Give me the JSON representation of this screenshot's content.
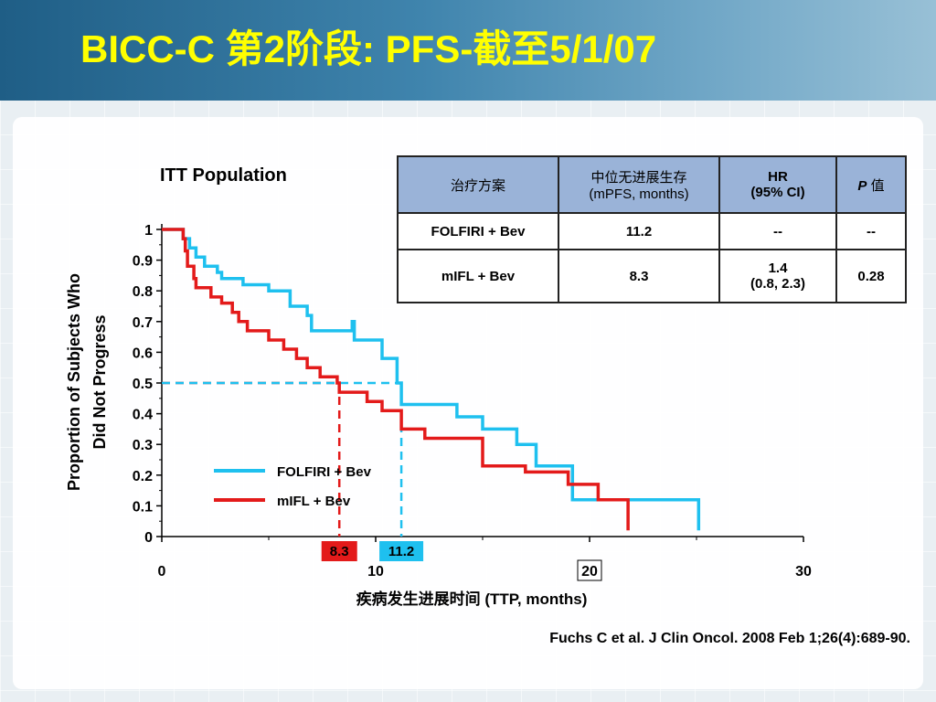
{
  "slide": {
    "title": "BICC-C  第2阶段: PFS-截至5/1/07",
    "citation": "Fuchs C et al. J Clin Oncol. 2008 Feb 1;26(4):689-90."
  },
  "table": {
    "headers": {
      "treatment": "治疗方案",
      "mpfs_line1": "中位无进展生存",
      "mpfs_line2": "(mPFS, months)",
      "hr_line1": "HR",
      "hr_line2": "(95% CI)",
      "p_italic": "P",
      "p_rest": " 值"
    },
    "rows": [
      {
        "treatment": "FOLFIRI + Bev",
        "mpfs": "11.2",
        "hr_line1": "--",
        "hr_line2": "",
        "p": "--"
      },
      {
        "treatment": "mIFL + Bev",
        "mpfs": "8.3",
        "hr_line1": "1.4",
        "hr_line2": "(0.8, 2.3)",
        "p": "0.28"
      }
    ]
  },
  "chart_data": {
    "type": "line",
    "step": true,
    "title": "ITT Population",
    "xlabel": "疾病发生进展时间 (TTP, months)",
    "ylabel_line1": "Proportion of Subjects Who",
    "ylabel_line2": "Did Not Progress",
    "xlim": [
      0,
      30
    ],
    "ylim": [
      0,
      1
    ],
    "x_ticks": [
      {
        "value": 0,
        "label": "0"
      },
      {
        "value": 10,
        "label": "10"
      },
      {
        "value": 20,
        "label": "20"
      },
      {
        "value": 30,
        "label": "30"
      }
    ],
    "y_ticks": [
      {
        "value": 0,
        "label": "0"
      },
      {
        "value": 0.1,
        "label": "0.1"
      },
      {
        "value": 0.2,
        "label": "0.2"
      },
      {
        "value": 0.3,
        "label": "0.3"
      },
      {
        "value": 0.4,
        "label": "0.4"
      },
      {
        "value": 0.5,
        "label": "0.5"
      },
      {
        "value": 0.6,
        "label": "0.6"
      },
      {
        "value": 0.7,
        "label": "0.7"
      },
      {
        "value": 0.8,
        "label": "0.8"
      },
      {
        "value": 0.9,
        "label": "0.9"
      },
      {
        "value": 1,
        "label": "1"
      }
    ],
    "grid": false,
    "legend_position": "lower-left",
    "series": [
      {
        "name": "FOLFIRI + Bev",
        "color": "#1ec0ef",
        "points": [
          [
            0,
            1.0
          ],
          [
            1.0,
            1.0
          ],
          [
            1.0,
            0.97
          ],
          [
            1.3,
            0.97
          ],
          [
            1.3,
            0.94
          ],
          [
            1.6,
            0.94
          ],
          [
            1.6,
            0.91
          ],
          [
            2.0,
            0.91
          ],
          [
            2.0,
            0.88
          ],
          [
            2.6,
            0.88
          ],
          [
            2.6,
            0.86
          ],
          [
            2.8,
            0.86
          ],
          [
            2.8,
            0.84
          ],
          [
            3.8,
            0.84
          ],
          [
            3.8,
            0.82
          ],
          [
            5.0,
            0.82
          ],
          [
            5.0,
            0.8
          ],
          [
            6.0,
            0.8
          ],
          [
            6.0,
            0.75
          ],
          [
            6.8,
            0.75
          ],
          [
            6.8,
            0.72
          ],
          [
            7.0,
            0.72
          ],
          [
            7.0,
            0.67
          ],
          [
            8.9,
            0.67
          ],
          [
            8.9,
            0.7
          ],
          [
            9.0,
            0.7
          ],
          [
            9.0,
            0.64
          ],
          [
            10.3,
            0.64
          ],
          [
            10.3,
            0.58
          ],
          [
            11.0,
            0.58
          ],
          [
            11.0,
            0.5
          ],
          [
            11.2,
            0.5
          ],
          [
            11.2,
            0.43
          ],
          [
            13.8,
            0.43
          ],
          [
            13.8,
            0.39
          ],
          [
            15.0,
            0.39
          ],
          [
            15.0,
            0.35
          ],
          [
            16.6,
            0.35
          ],
          [
            16.6,
            0.3
          ],
          [
            17.5,
            0.3
          ],
          [
            17.5,
            0.23
          ],
          [
            19.2,
            0.23
          ],
          [
            19.2,
            0.12
          ],
          [
            25.1,
            0.12
          ],
          [
            25.1,
            0.02
          ]
        ]
      },
      {
        "name": "mIFL + Bev",
        "color": "#e31a1a",
        "points": [
          [
            0,
            1.0
          ],
          [
            1.0,
            1.0
          ],
          [
            1.0,
            0.97
          ],
          [
            1.1,
            0.97
          ],
          [
            1.1,
            0.93
          ],
          [
            1.2,
            0.93
          ],
          [
            1.2,
            0.88
          ],
          [
            1.5,
            0.88
          ],
          [
            1.5,
            0.84
          ],
          [
            1.6,
            0.84
          ],
          [
            1.6,
            0.81
          ],
          [
            2.3,
            0.81
          ],
          [
            2.3,
            0.78
          ],
          [
            2.8,
            0.78
          ],
          [
            2.8,
            0.76
          ],
          [
            3.3,
            0.76
          ],
          [
            3.3,
            0.73
          ],
          [
            3.6,
            0.73
          ],
          [
            3.6,
            0.7
          ],
          [
            4.0,
            0.7
          ],
          [
            4.0,
            0.67
          ],
          [
            5.0,
            0.67
          ],
          [
            5.0,
            0.64
          ],
          [
            5.7,
            0.64
          ],
          [
            5.7,
            0.61
          ],
          [
            6.3,
            0.61
          ],
          [
            6.3,
            0.58
          ],
          [
            6.8,
            0.58
          ],
          [
            6.8,
            0.55
          ],
          [
            7.4,
            0.55
          ],
          [
            7.4,
            0.52
          ],
          [
            8.2,
            0.52
          ],
          [
            8.2,
            0.5
          ],
          [
            8.3,
            0.5
          ],
          [
            8.3,
            0.47
          ],
          [
            9.6,
            0.47
          ],
          [
            9.6,
            0.44
          ],
          [
            10.3,
            0.44
          ],
          [
            10.3,
            0.41
          ],
          [
            11.2,
            0.41
          ],
          [
            11.2,
            0.35
          ],
          [
            12.3,
            0.35
          ],
          [
            12.3,
            0.32
          ],
          [
            15.0,
            0.32
          ],
          [
            15.0,
            0.23
          ],
          [
            17.0,
            0.23
          ],
          [
            17.0,
            0.21
          ],
          [
            19.0,
            0.21
          ],
          [
            19.0,
            0.17
          ],
          [
            20.4,
            0.17
          ],
          [
            20.4,
            0.12
          ],
          [
            21.8,
            0.12
          ],
          [
            21.8,
            0.02
          ]
        ]
      }
    ],
    "median_markers": [
      {
        "label": "8.3",
        "x": 8.3,
        "y": 0.5,
        "series": "mIFL + Bev",
        "color": "#e31a1a",
        "badge_color": "#e31a1a"
      },
      {
        "label": "11.2",
        "x": 11.2,
        "y": 0.5,
        "series": "FOLFIRI + Bev",
        "color": "#1ec0ef",
        "badge_color": "#1ec0ef"
      }
    ],
    "boxed_tick": "20"
  }
}
